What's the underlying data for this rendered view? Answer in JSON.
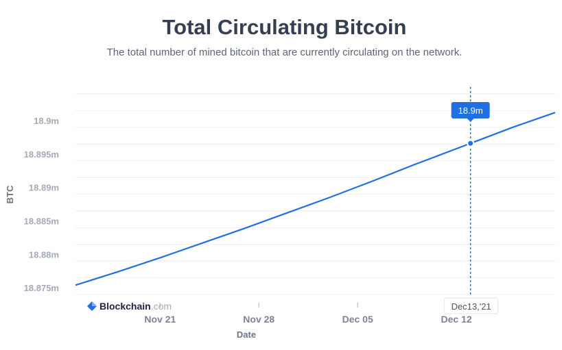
{
  "header": {
    "title": "Total Circulating Bitcoin",
    "subtitle": "The total number of mined bitcoin that are currently circulating on the network."
  },
  "branding": {
    "name": "Blockchain",
    "tld": ".com"
  },
  "tooltip": {
    "value_label": "18.9m",
    "date_label": "Dec13,'21"
  },
  "colors": {
    "line": "#1f6fe0",
    "grid": "#eceef2",
    "tooltip_bg": "#1f6fe0"
  },
  "chart_data": {
    "type": "line",
    "title": "Total Circulating Bitcoin",
    "xlabel": "Date",
    "ylabel": "BTC",
    "x_ticks": [
      "Nov 21",
      "Nov 28",
      "Dec 05",
      "Dec 12"
    ],
    "y_ticks": [
      "18.875m",
      "18.88m",
      "18.885m",
      "18.89m",
      "18.895m",
      "18.9m"
    ],
    "ylim": [
      18.874,
      18.904
    ],
    "grid": true,
    "series": [
      {
        "x": [
          "2021-11-15",
          "2021-11-18",
          "2021-11-21",
          "2021-11-24",
          "2021-11-27",
          "2021-11-30",
          "2021-12-03",
          "2021-12-06",
          "2021-12-09",
          "2021-12-12",
          "2021-12-13",
          "2021-12-16",
          "2021-12-19"
        ],
        "y": [
          18.8754,
          18.8774,
          18.8795,
          18.8817,
          18.8839,
          18.8862,
          18.8885,
          18.8909,
          18.8934,
          18.8958,
          18.8966,
          18.899,
          18.9012
        ]
      }
    ],
    "highlight": {
      "x": "2021-12-13",
      "y": 18.8966,
      "label": "18.9m"
    }
  }
}
